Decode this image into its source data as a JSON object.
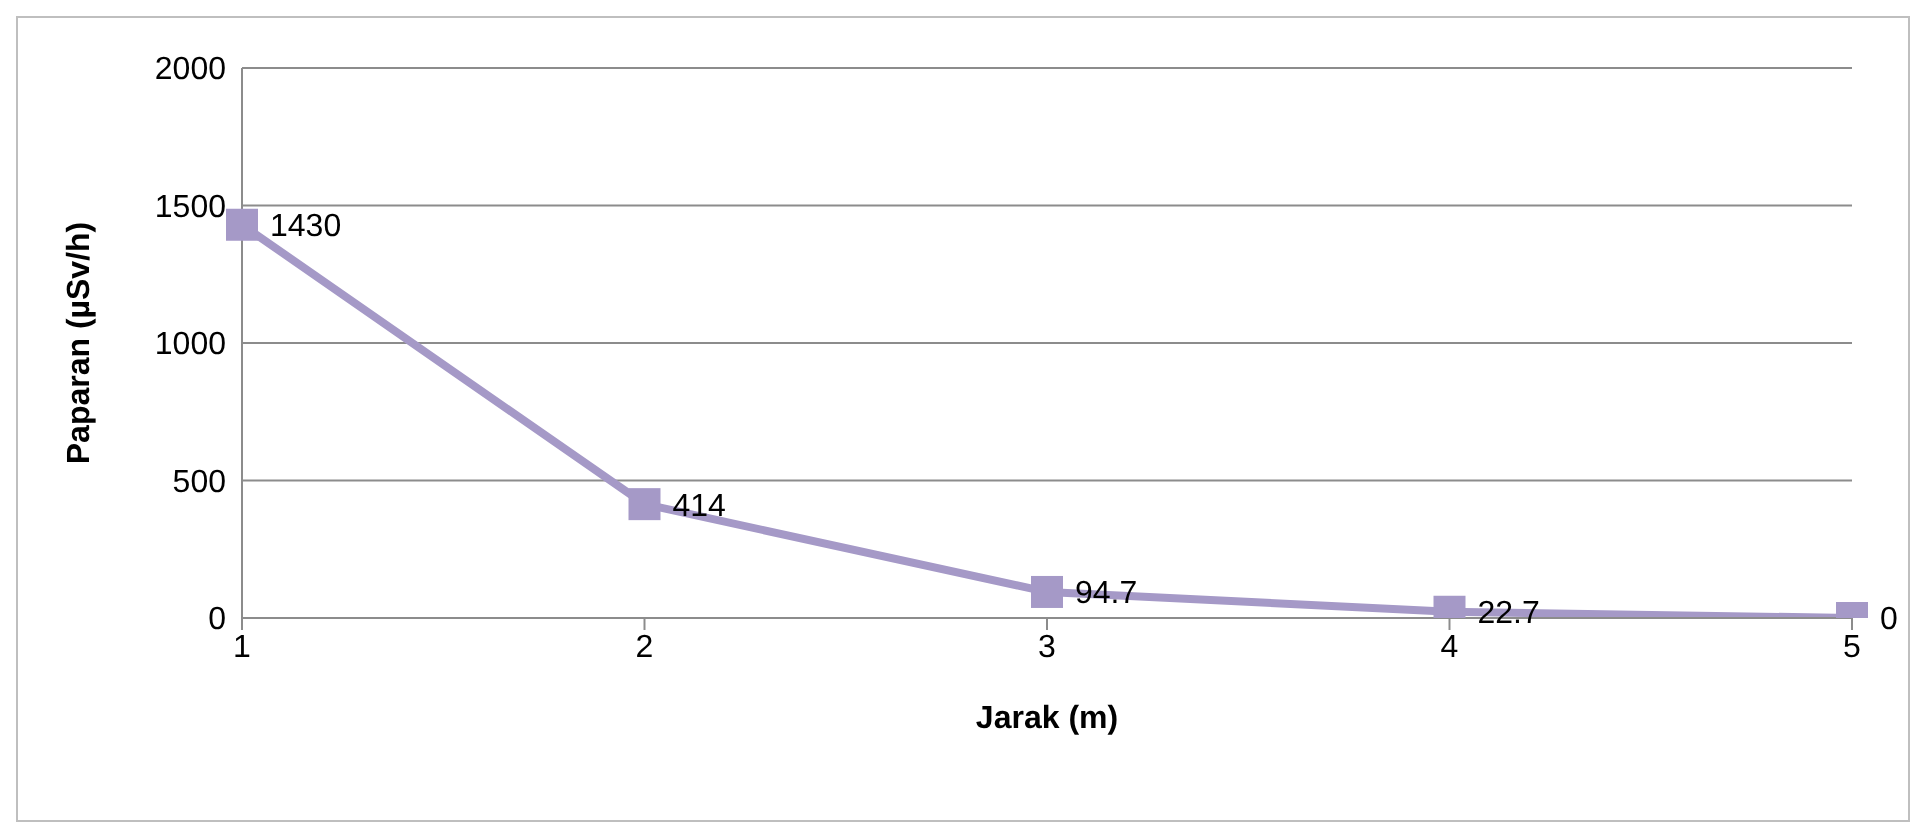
{
  "chart_data": {
    "type": "line",
    "xlabel": "Jarak (m)",
    "ylabel": "Paparan (µSv/h)",
    "categories": [
      "1",
      "2",
      "3",
      "4",
      "5"
    ],
    "series": [
      {
        "color": "#a599c7",
        "values": [
          1430,
          414,
          94.7,
          22.7,
          0
        ]
      }
    ],
    "ylim": [
      0,
      2000
    ],
    "yticks": [
      0,
      500,
      1000,
      1500,
      2000
    ],
    "grid": "y",
    "marker": "square",
    "line_style": "solid",
    "data_labels": true,
    "legend": false
  }
}
